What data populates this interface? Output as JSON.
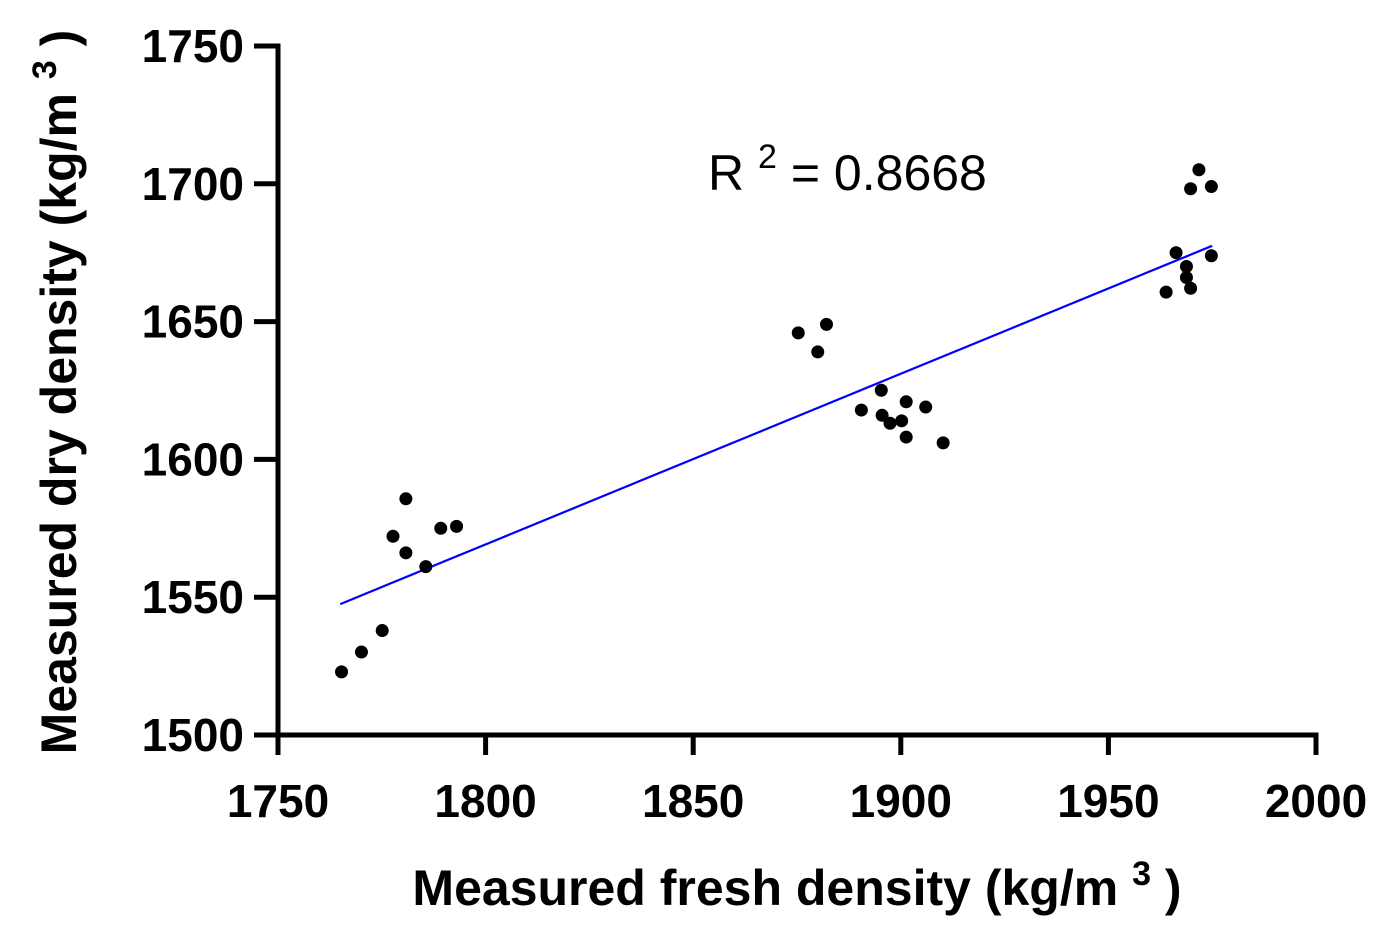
{
  "chart_data": {
    "type": "scatter",
    "title": "",
    "xlabel": "Measured fresh density (kg/m",
    "xlabel_sup": "3",
    "xlabel_close": ")",
    "ylabel": "Measured dry density (kg/m",
    "ylabel_sup": "3",
    "ylabel_close": ")",
    "xlim": [
      1750,
      2000
    ],
    "ylim": [
      1500,
      1750
    ],
    "xticks": [
      "1750",
      "1800",
      "1850",
      "1900",
      "1950",
      "2000"
    ],
    "yticks": [
      "1500",
      "1550",
      "1600",
      "1650",
      "1700",
      "1750"
    ],
    "grid": false,
    "annotation": {
      "prefix": "R",
      "sup": "2",
      "suffix": " = 0.8668"
    },
    "trendline": {
      "x_start": 1765,
      "x_end": 1975,
      "y_start": 1547.5,
      "y_end": 1677.5,
      "color": "#0000ff"
    },
    "series": [
      {
        "name": "Measured data",
        "color": "#000000",
        "points": [
          [
            1765.3,
            1522.9
          ],
          [
            1770.1,
            1530.1
          ],
          [
            1775.1,
            1537.9
          ],
          [
            1777.7,
            1572.1
          ],
          [
            1780.8,
            1566.1
          ],
          [
            1780.8,
            1585.7
          ],
          [
            1785.6,
            1561.1
          ],
          [
            1789.2,
            1575.0
          ],
          [
            1793.0,
            1575.7
          ],
          [
            1875.3,
            1645.9
          ],
          [
            1880.0,
            1639.0
          ],
          [
            1882.1,
            1649.0
          ],
          [
            1890.5,
            1617.9
          ],
          [
            1895.3,
            1625.1
          ],
          [
            1895.5,
            1616.0
          ],
          [
            1897.4,
            1613.1
          ],
          [
            1900.2,
            1614.0
          ],
          [
            1901.3,
            1620.9
          ],
          [
            1901.3,
            1608.1
          ],
          [
            1906.0,
            1619.0
          ],
          [
            1910.2,
            1606.0
          ],
          [
            1963.9,
            1660.7
          ],
          [
            1966.3,
            1675.0
          ],
          [
            1968.8,
            1670.0
          ],
          [
            1968.8,
            1666.0
          ],
          [
            1969.8,
            1662.1
          ],
          [
            1969.8,
            1698.2
          ],
          [
            1971.8,
            1705.1
          ],
          [
            1974.8,
            1699.0
          ],
          [
            1974.8,
            1673.9
          ]
        ]
      }
    ]
  }
}
